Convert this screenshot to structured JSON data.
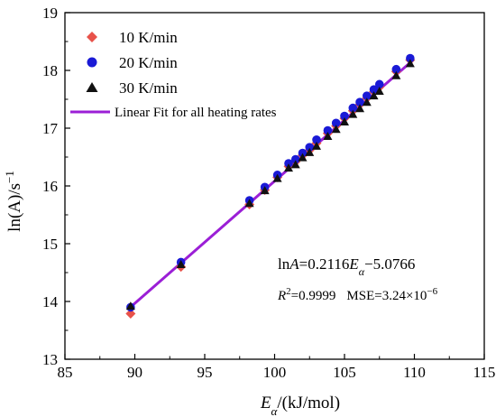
{
  "chart_data": {
    "type": "scatter",
    "title": "",
    "xlabel_main": "E",
    "xlabel_sub": "α",
    "xlabel_unit": "/(kJ/mol)",
    "ylabel": "ln(A)/s",
    "ylabel_sup": "−1",
    "xlim": [
      85,
      115
    ],
    "ylim": [
      13,
      19
    ],
    "x_ticks": [
      85,
      90,
      95,
      100,
      105,
      110,
      115
    ],
    "y_ticks": [
      13,
      14,
      15,
      16,
      17,
      18,
      19
    ],
    "grid": false,
    "legend_position": "top-left",
    "series": [
      {
        "name": "10 K/min",
        "marker": "diamond",
        "color": "#e8524a",
        "points": [
          [
            89.7,
            13.79
          ],
          [
            93.3,
            14.6
          ],
          [
            98.2,
            15.68
          ],
          [
            99.3,
            15.93
          ],
          [
            100.2,
            16.15
          ],
          [
            101.0,
            16.34
          ],
          [
            101.5,
            16.42
          ],
          [
            102.0,
            16.53
          ],
          [
            102.5,
            16.62
          ],
          [
            103.0,
            16.74
          ],
          [
            103.8,
            16.91
          ],
          [
            104.4,
            17.04
          ],
          [
            105.0,
            17.17
          ],
          [
            105.6,
            17.3
          ],
          [
            106.1,
            17.41
          ],
          [
            106.6,
            17.52
          ],
          [
            107.1,
            17.63
          ],
          [
            107.5,
            17.71
          ],
          [
            108.7,
            17.98
          ],
          [
            109.7,
            18.18
          ]
        ]
      },
      {
        "name": "20 K/min",
        "marker": "circle",
        "color": "#1a1ad6",
        "points": [
          [
            89.7,
            13.9
          ],
          [
            93.3,
            14.68
          ],
          [
            98.2,
            15.75
          ],
          [
            99.3,
            15.98
          ],
          [
            100.2,
            16.19
          ],
          [
            101.0,
            16.39
          ],
          [
            101.5,
            16.46
          ],
          [
            102.0,
            16.57
          ],
          [
            102.5,
            16.67
          ],
          [
            103.0,
            16.8
          ],
          [
            103.8,
            16.96
          ],
          [
            104.4,
            17.09
          ],
          [
            105.0,
            17.21
          ],
          [
            105.6,
            17.35
          ],
          [
            106.1,
            17.45
          ],
          [
            106.6,
            17.56
          ],
          [
            107.1,
            17.67
          ],
          [
            107.5,
            17.76
          ],
          [
            108.7,
            18.02
          ],
          [
            109.7,
            18.21
          ]
        ]
      },
      {
        "name": "30 K/min",
        "marker": "triangle",
        "color": "#111111",
        "points": [
          [
            89.7,
            13.92
          ],
          [
            93.3,
            14.64
          ],
          [
            98.2,
            15.7
          ],
          [
            99.3,
            15.92
          ],
          [
            100.2,
            16.13
          ],
          [
            101.0,
            16.31
          ],
          [
            101.5,
            16.37
          ],
          [
            102.0,
            16.49
          ],
          [
            102.5,
            16.58
          ],
          [
            103.0,
            16.69
          ],
          [
            103.8,
            16.86
          ],
          [
            104.4,
            16.98
          ],
          [
            105.0,
            17.11
          ],
          [
            105.6,
            17.24
          ],
          [
            106.1,
            17.34
          ],
          [
            106.6,
            17.45
          ],
          [
            107.1,
            17.56
          ],
          [
            107.5,
            17.64
          ],
          [
            108.7,
            17.91
          ],
          [
            109.7,
            18.12
          ]
        ]
      }
    ],
    "fit": {
      "name": "Linear Fit for all heating rates",
      "color": "#9b1fd6",
      "slope": 0.2116,
      "intercept": -5.0766,
      "x_range": [
        89.7,
        109.9
      ]
    },
    "annotations": {
      "equation": {
        "pre": "ln",
        "A": "A",
        "mid": "=0.2116",
        "E": "E",
        "sub": "α",
        "post": "−5.0766"
      },
      "stats": {
        "R": "R",
        "sup2": "2",
        "r_value": "=0.9999",
        "mse": "MSE=3.24×10",
        "mse_exp": "−6"
      }
    }
  }
}
